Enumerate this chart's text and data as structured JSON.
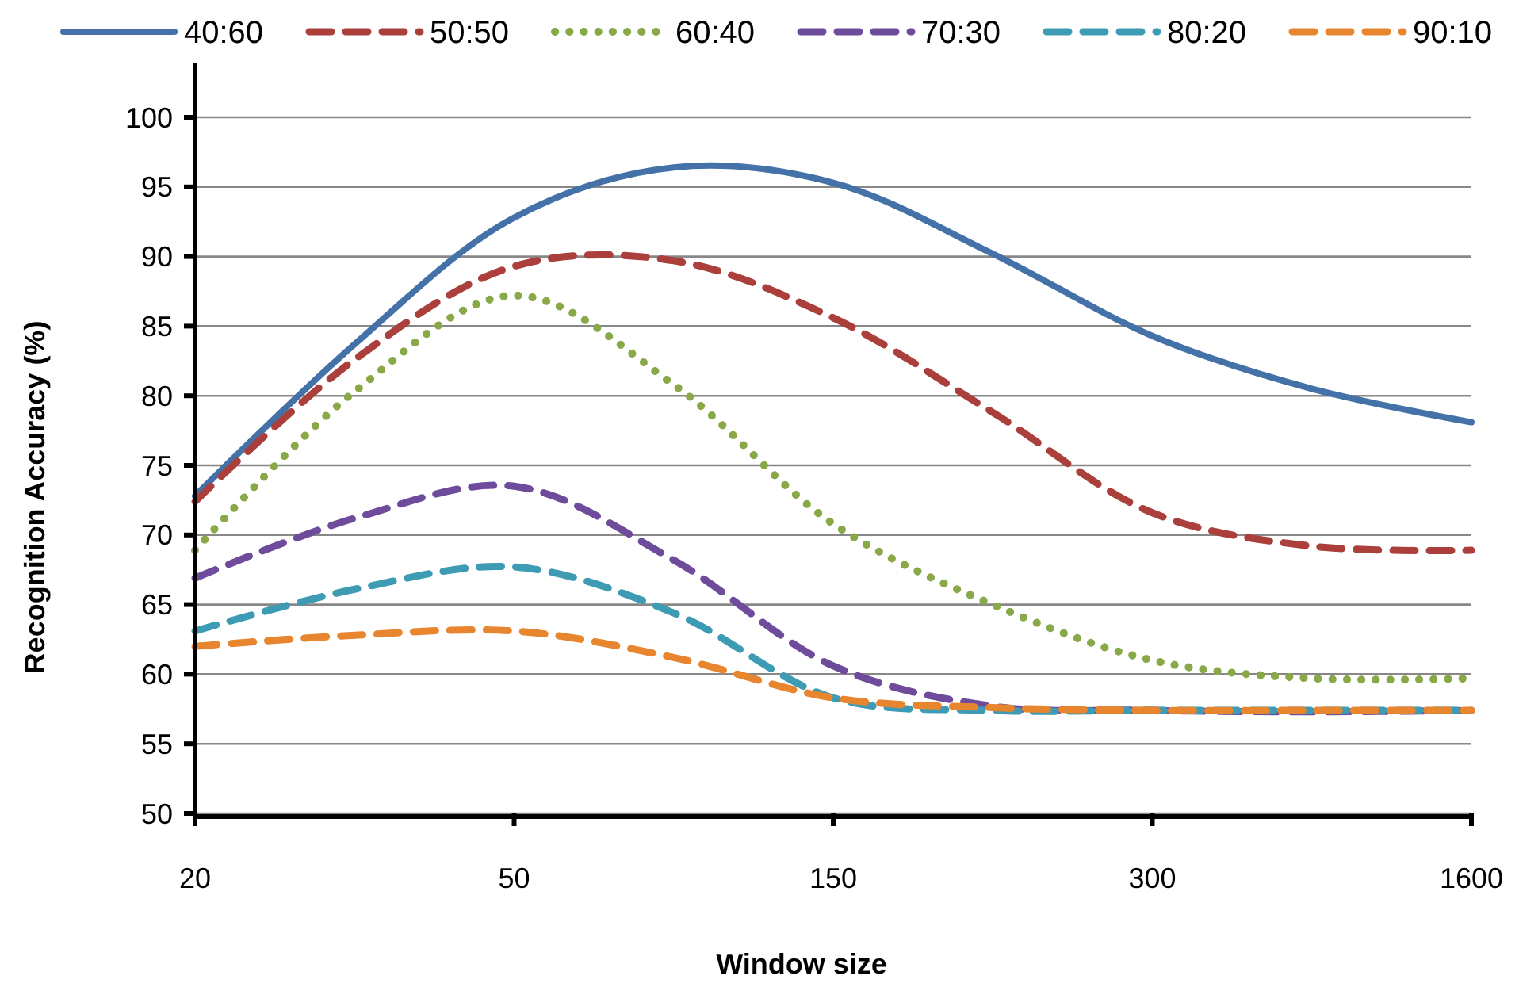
{
  "chart_data": {
    "type": "line",
    "xlabel": "Window size",
    "ylabel": "Recognition Accuracy (%)",
    "categories": [
      "20",
      null,
      "50",
      null,
      "150",
      null,
      "300",
      null,
      "1600"
    ],
    "ylim": [
      50,
      100
    ],
    "yticks": [
      50,
      55,
      60,
      65,
      70,
      75,
      80,
      85,
      90,
      95,
      100
    ],
    "grid": "y",
    "legend": "top",
    "series": [
      {
        "name": "40:60",
        "color": "#4472a8",
        "line_style": "solid",
        "values": [
          72.8,
          83.7,
          92.8,
          96.4,
          95.3,
          90.2,
          84.3,
          80.5,
          78.1
        ]
      },
      {
        "name": "50:50",
        "color": "#aa3f3c",
        "line_style": "dashed",
        "values": [
          72.4,
          82.6,
          89.3,
          89.7,
          85.6,
          78.8,
          71.6,
          69.2,
          68.9
        ]
      },
      {
        "name": "60:40",
        "color": "#89a848",
        "line_style": "dotted",
        "values": [
          68.9,
          80.3,
          87.2,
          80.8,
          70.8,
          65.0,
          61.0,
          59.7,
          59.7
        ]
      },
      {
        "name": "70:30",
        "color": "#6f4c9b",
        "line_style": "dashed",
        "values": [
          66.9,
          71.2,
          73.5,
          68.2,
          60.6,
          57.7,
          57.4,
          57.3,
          57.4
        ]
      },
      {
        "name": "80:20",
        "color": "#3d9bb3",
        "line_style": "dashed",
        "values": [
          63.1,
          66.1,
          67.7,
          64.4,
          58.3,
          57.4,
          57.4,
          57.4,
          57.4
        ]
      },
      {
        "name": "90:10",
        "color": "#e8852f",
        "line_style": "dashed",
        "values": [
          62.0,
          62.8,
          63.1,
          61.2,
          58.3,
          57.6,
          57.4,
          57.4,
          57.4
        ]
      }
    ]
  }
}
